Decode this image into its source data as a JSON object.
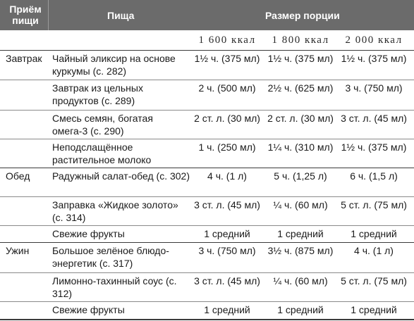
{
  "header": {
    "meal": "Приём пищи",
    "food": "Пища",
    "portion_size": "Размер порции"
  },
  "kcal": [
    "1 600 ккал",
    "1 800 ккал",
    "2 000 ккал"
  ],
  "rows": [
    {
      "meal": "Завтрак",
      "food": "Чайный эликсир на основе куркумы (с. 282)",
      "v": [
        "1½ ч. (375 мл)",
        "1½ ч. (375 мл)",
        "1½ ч. (375 мл)"
      ]
    },
    {
      "meal": "",
      "food": "Завтрак из цельных продуктов (с. 289)",
      "v": [
        "2 ч. (500 мл)",
        "2½ ч. (625 мл)",
        "3 ч. (750 мл)"
      ]
    },
    {
      "meal": "",
      "food": "Смесь семян, богатая омега-3 (с. 290)",
      "v": [
        "2 ст. л. (30 мл)",
        "2 ст. л. (30 мл)",
        "3 ст. л. (45 мл)"
      ]
    },
    {
      "meal": "",
      "food": "Неподслащённое растительное молоко",
      "v": [
        "1 ч. (250 мл)",
        "1¼ ч. (310 мл)",
        "1½ ч. (375 мл)"
      ]
    },
    {
      "meal": "Обед",
      "food": "Радужный салат-обед (с. 302)",
      "v": [
        "4 ч. (1 л)",
        "5 ч. (1,25 л)",
        "6 ч. (1,5 л)"
      ]
    },
    {
      "meal": "",
      "food": "Заправка «Жидкое золото» (с. 314)",
      "v": [
        "3 ст. л. (45 мл)",
        "¼ ч. (60 мл)",
        "5 ст. л. (75 мл)"
      ]
    },
    {
      "meal": "",
      "food": "Свежие фрукты",
      "v": [
        "1 средний",
        "1 средний",
        "1 средний"
      ]
    },
    {
      "meal": "Ужин",
      "food": "Большое зелёное блюдо-энергетик (с. 317)",
      "v": [
        "3 ч. (750 мл)",
        "3½ ч. (875 мл)",
        "4 ч. (1 л)"
      ]
    },
    {
      "meal": "",
      "food": "Лимонно-тахинный соус (с. 312)",
      "v": [
        "3 ст. л. (45 мл)",
        "¼ ч. (60 мл)",
        "5 ст. л. (75 мл)"
      ]
    },
    {
      "meal": "",
      "food": "Свежие фрукты",
      "v": [
        "1 средний",
        "1 средний",
        "1 средний"
      ]
    }
  ]
}
